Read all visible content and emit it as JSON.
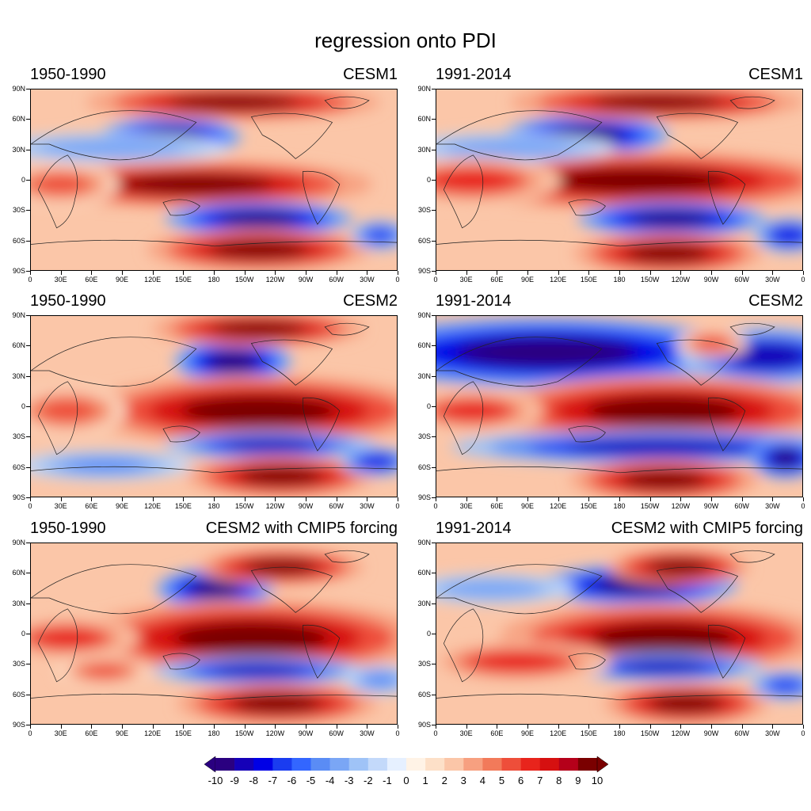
{
  "title": "regression onto PDI",
  "panels": [
    {
      "period": "1950-1990",
      "model": "CESM1"
    },
    {
      "period": "1991-2014",
      "model": "CESM1"
    },
    {
      "period": "1950-1990",
      "model": "CESM2"
    },
    {
      "period": "1991-2014",
      "model": "CESM2"
    },
    {
      "period": "1950-1990",
      "model": "CESM2 with CMIP5 forcing"
    },
    {
      "period": "1991-2014",
      "model": "CESM2 with CMIP5 forcing"
    }
  ],
  "lat_labels": [
    "90N",
    "60N",
    "30N",
    "0",
    "30S",
    "60S",
    "90S"
  ],
  "lon_labels": [
    "0",
    "30E",
    "60E",
    "90E",
    "120E",
    "150E",
    "180",
    "150W",
    "120W",
    "90W",
    "60W",
    "30W",
    "0"
  ],
  "colorbar": {
    "labels": [
      "-10",
      "-9",
      "-8",
      "-7",
      "-6",
      "-5",
      "-4",
      "-3",
      "-2",
      "-1",
      "0",
      "1",
      "2",
      "3",
      "4",
      "5",
      "6",
      "7",
      "8",
      "9",
      "10"
    ],
    "colors": [
      "#2a0080",
      "#1500b8",
      "#0000e6",
      "#1a3cf0",
      "#3366ff",
      "#5a8cf5",
      "#7aa6f5",
      "#9fc3f7",
      "#c3d9fa",
      "#e6f0ff",
      "#fff3e6",
      "#fde0c8",
      "#fbc6a8",
      "#f7a080",
      "#f27a5a",
      "#ee4e3a",
      "#e8241c",
      "#d61010",
      "#b5001a",
      "#7a0000"
    ],
    "min_color": "#2a0080",
    "max_color": "#7a0000"
  }
}
